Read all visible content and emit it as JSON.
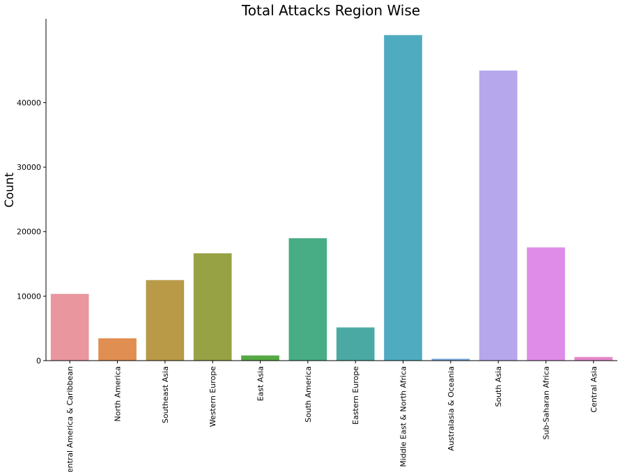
{
  "chart_data": {
    "type": "bar",
    "title": "Total Attacks Region Wise",
    "xlabel": "",
    "ylabel": "Count",
    "categories": [
      "Central America & Caribbean",
      "North America",
      "Southeast Asia",
      "Western Europe",
      "East Asia",
      "South America",
      "Eastern Europe",
      "Middle East & North Africa",
      "Australasia & Oceania",
      "South Asia",
      "Sub-Saharan Africa",
      "Central Asia"
    ],
    "values": [
      10344,
      3456,
      12485,
      16639,
      802,
      18978,
      5144,
      50474,
      282,
      44974,
      17550,
      563
    ],
    "colors": [
      "#e9969f",
      "#e08e51",
      "#b89a47",
      "#96a244",
      "#55a945",
      "#48ac85",
      "#4aaaa3",
      "#4fabbf",
      "#74a8dc",
      "#b6a6ec",
      "#de8ce7",
      "#e787cb"
    ],
    "yticks": [
      0,
      10000,
      20000,
      30000,
      40000
    ],
    "ylim": [
      0,
      53000
    ],
    "grid": false,
    "legend": "none"
  }
}
